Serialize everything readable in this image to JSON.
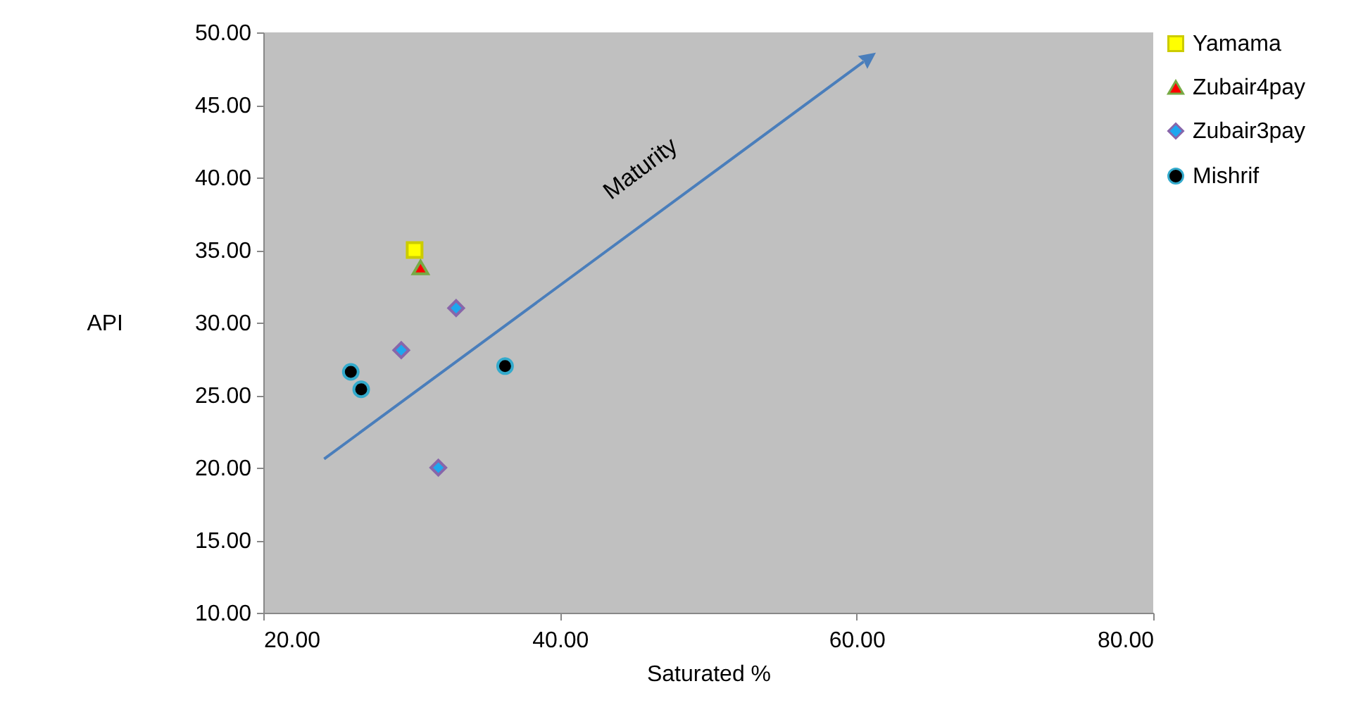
{
  "chart_data": {
    "type": "scatter",
    "xlabel": "Saturated %",
    "ylabel": "API",
    "xlim": [
      20,
      80
    ],
    "xticks": [
      {
        "value": 20,
        "label": "20.00"
      },
      {
        "value": 40,
        "label": "40.00"
      },
      {
        "value": 60,
        "label": "60.00"
      },
      {
        "value": 80,
        "label": "80.00"
      }
    ],
    "ylim": [
      10,
      50
    ],
    "yticks": [
      {
        "value": 10,
        "label": "10.00"
      },
      {
        "value": 15,
        "label": "15.00"
      },
      {
        "value": 20,
        "label": "20.00"
      },
      {
        "value": 25,
        "label": "25.00"
      },
      {
        "value": 30,
        "label": "30.00"
      },
      {
        "value": 35,
        "label": "35.00"
      },
      {
        "value": 40,
        "label": "40.00"
      },
      {
        "value": 45,
        "label": "45.00"
      },
      {
        "value": 50,
        "label": "50.00"
      }
    ],
    "grid": false,
    "legend": "right",
    "annotations": [
      "Maturity"
    ],
    "series": [
      {
        "name": "Yamama",
        "color": "#ffff00",
        "marker": "square",
        "x": [
          30.2
        ],
        "values": [
          35.0
        ]
      },
      {
        "name": "Zubair4pay",
        "color": "#ff0000",
        "marker": "triangle",
        "x": [
          30.6
        ],
        "values": [
          33.8
        ]
      },
      {
        "name": "Zubair3pay",
        "color": "#1ea7ef",
        "marker": "diamond",
        "x": [
          33.0,
          29.3,
          31.8
        ],
        "values": [
          31.0,
          28.1,
          20.0
        ]
      },
      {
        "name": "Mishrif",
        "color": "#000000",
        "marker": "circle",
        "x": [
          25.9,
          26.6,
          36.3
        ],
        "values": [
          26.6,
          25.4,
          27.0
        ]
      }
    ]
  }
}
